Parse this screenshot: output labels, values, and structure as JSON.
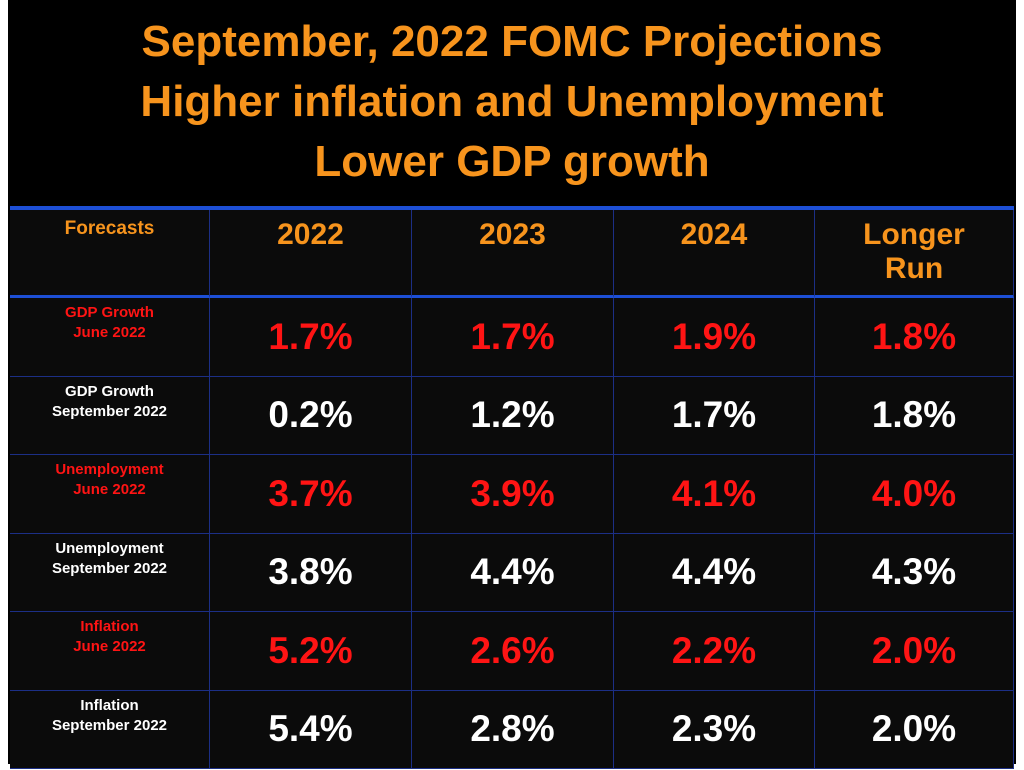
{
  "header": {
    "title": [
      "September, 2022 FOMC Projections",
      "Higher inflation and Unemployment",
      "Lower GDP growth"
    ]
  },
  "table": {
    "columns": [
      [
        "Forecasts"
      ],
      [
        "2022"
      ],
      [
        "2023"
      ],
      [
        "2024"
      ],
      [
        "Longer",
        "Run"
      ]
    ],
    "rows": [
      {
        "label": [
          "GDP Growth",
          "June 2022"
        ],
        "values": [
          "1.7%",
          "1.7%",
          "1.9%",
          "1.8%"
        ]
      },
      {
        "label": [
          "GDP Growth",
          "September 2022"
        ],
        "values": [
          "0.2%",
          "1.2%",
          "1.7%",
          "1.8%"
        ]
      },
      {
        "label": [
          "Unemployment",
          "June 2022"
        ],
        "values": [
          "3.7%",
          "3.9%",
          "4.1%",
          "4.0%"
        ]
      },
      {
        "label": [
          "Unemployment",
          "September 2022"
        ],
        "values": [
          "3.8%",
          "4.4%",
          "4.4%",
          "4.3%"
        ]
      },
      {
        "label": [
          "Inflation",
          "June 2022"
        ],
        "values": [
          "5.2%",
          "2.6%",
          "2.2%",
          "2.0%"
        ]
      },
      {
        "label": [
          "Inflation",
          "September 2022"
        ],
        "values": [
          "5.4%",
          "2.8%",
          "2.3%",
          "2.0%"
        ]
      }
    ]
  }
}
